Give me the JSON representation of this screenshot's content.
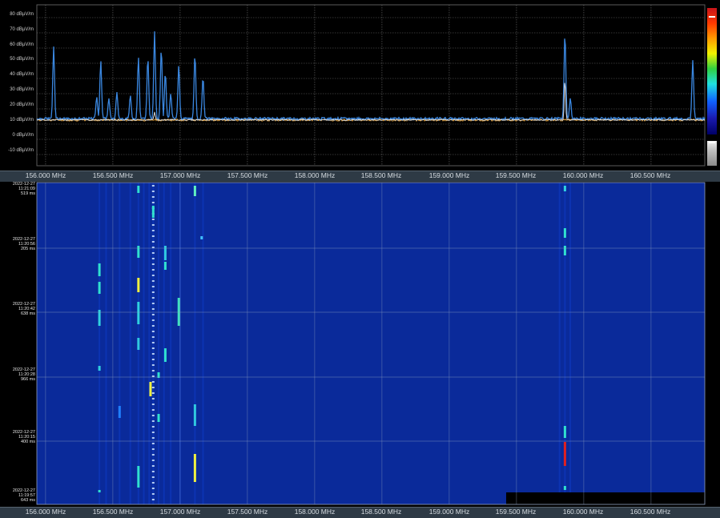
{
  "spectrum": {
    "y_axis_labels": [
      "80 dBµV/m",
      "70 dBµV/m",
      "60 dBµV/m",
      "50 dBµV/m",
      "40 dBµV/m",
      "30 dBµV/m",
      "20 dBµV/m",
      "10 dBµV/m",
      "0 dBµV/m",
      "-10 dBµV/m"
    ],
    "noise_floor_dbuv": 13,
    "peaks_mhz_dbuv": [
      [
        156.06,
        61
      ],
      [
        156.38,
        28
      ],
      [
        156.41,
        52
      ],
      [
        156.47,
        27
      ],
      [
        156.53,
        31
      ],
      [
        156.63,
        29
      ],
      [
        156.69,
        54
      ],
      [
        156.76,
        54
      ],
      [
        156.81,
        71
      ],
      [
        156.86,
        60
      ],
      [
        156.89,
        44
      ],
      [
        156.93,
        30
      ],
      [
        156.99,
        49
      ],
      [
        157.11,
        56
      ],
      [
        157.17,
        41
      ],
      [
        159.86,
        70
      ],
      [
        159.9,
        27
      ],
      [
        160.81,
        52
      ]
    ],
    "hold_peaks_mhz_dbuv": [
      [
        159.86,
        40
      ],
      [
        156.81,
        18
      ]
    ],
    "colors": {
      "trace": "#3a87e0",
      "floor": "#e8a030",
      "hold": "#d8d8d8",
      "grid": "#6b6b6b"
    }
  },
  "freq_axis_labels": [
    "156.000 MHz",
    "156.500 MHz",
    "157.000 MHz",
    "157.500 MHz",
    "158.000 MHz",
    "158.500 MHz",
    "159.000 MHz",
    "159.500 MHz",
    "160.000 MHz",
    "160.500 MHz"
  ],
  "waterfall": {
    "timestamps": [
      {
        "date": "2022-12-27",
        "time": "11:21:09",
        "ms": "519 ms"
      },
      {
        "date": "2022-12-27",
        "time": "11:20:56",
        "ms": "205 ms"
      },
      {
        "date": "2022-12-27",
        "time": "11:20:42",
        "ms": "638 ms"
      },
      {
        "date": "2022-12-27",
        "time": "11:20:28",
        "ms": "966 ms"
      },
      {
        "date": "2022-12-27",
        "time": "11:20:15",
        "ms": "400 ms"
      },
      {
        "date": "2022-12-27",
        "time": "11:19:57",
        "ms": "643 ms"
      }
    ],
    "colors": {
      "background": "#0a2a9a",
      "dark": "#000000",
      "grid": "#8fa0c0"
    }
  }
}
